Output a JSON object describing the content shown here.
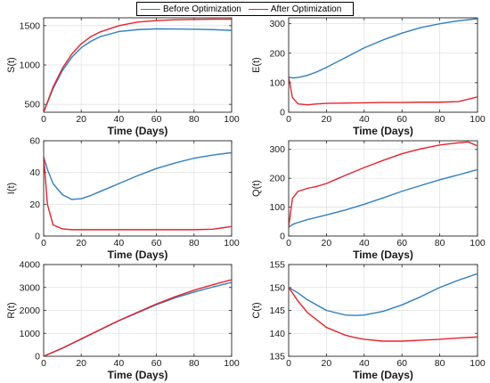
{
  "legend": {
    "before": "Before Optimization",
    "after": "After Optimization"
  },
  "colors": {
    "before": "#2f7fc1",
    "after": "#e8222b"
  },
  "chart_data": [
    {
      "type": "line",
      "ylabel": "S(t)",
      "xlabel": "Time (Days)",
      "xlim": [
        0,
        100
      ],
      "ylim": [
        400,
        1600
      ],
      "xticks": [
        0,
        20,
        40,
        60,
        80,
        100
      ],
      "yticks": [
        500,
        1000,
        1500
      ],
      "grid": true,
      "x": [
        0,
        5,
        10,
        15,
        20,
        25,
        30,
        40,
        50,
        60,
        70,
        80,
        90,
        100
      ],
      "series": [
        {
          "name": "Before Optimization",
          "values": [
            400,
            700,
            930,
            1100,
            1220,
            1300,
            1360,
            1425,
            1450,
            1460,
            1458,
            1455,
            1450,
            1440
          ]
        },
        {
          "name": "After Optimization",
          "values": [
            400,
            720,
            960,
            1140,
            1270,
            1360,
            1420,
            1500,
            1545,
            1565,
            1575,
            1580,
            1582,
            1583
          ]
        }
      ]
    },
    {
      "type": "line",
      "ylabel": "E(t)",
      "xlabel": "Time (Days)",
      "xlim": [
        0,
        100
      ],
      "ylim": [
        0,
        320
      ],
      "xticks": [
        0,
        20,
        40,
        60,
        80,
        100
      ],
      "yticks": [
        0,
        100,
        200,
        300
      ],
      "grid": true,
      "x": [
        0,
        2,
        5,
        10,
        15,
        20,
        30,
        40,
        50,
        60,
        70,
        80,
        90,
        100
      ],
      "series": [
        {
          "name": "Before Optimization",
          "values": [
            120,
            116,
            118,
            125,
            137,
            152,
            185,
            218,
            245,
            268,
            287,
            300,
            310,
            317
          ]
        },
        {
          "name": "After Optimization",
          "values": [
            120,
            50,
            28,
            25,
            28,
            30,
            31,
            32,
            33,
            33,
            34,
            34,
            36,
            52
          ]
        }
      ]
    },
    {
      "type": "line",
      "ylabel": "I(t)",
      "xlabel": "Time (Days)",
      "xlim": [
        0,
        100
      ],
      "ylim": [
        0,
        60
      ],
      "xticks": [
        0,
        20,
        40,
        60,
        80,
        100
      ],
      "yticks": [
        0,
        20,
        40,
        60
      ],
      "grid": true,
      "x": [
        0,
        2,
        5,
        10,
        15,
        20,
        25,
        30,
        40,
        50,
        60,
        70,
        80,
        90,
        100
      ],
      "series": [
        {
          "name": "Before Optimization",
          "values": [
            50,
            42,
            33,
            26,
            23,
            23.5,
            25.5,
            28,
            33,
            38,
            42.5,
            46,
            49,
            51,
            52.5
          ]
        },
        {
          "name": "After Optimization",
          "values": [
            50,
            20,
            7,
            4.5,
            4,
            4,
            4,
            4,
            4,
            4,
            4,
            4,
            4,
            4.3,
            6
          ]
        }
      ]
    },
    {
      "type": "line",
      "ylabel": "Q(t)",
      "xlabel": "Time (Days)",
      "xlim": [
        0,
        100
      ],
      "ylim": [
        0,
        330
      ],
      "xticks": [
        0,
        20,
        40,
        60,
        80,
        100
      ],
      "yticks": [
        0,
        100,
        200,
        300
      ],
      "grid": true,
      "x": [
        0,
        2,
        5,
        10,
        15,
        20,
        30,
        40,
        50,
        60,
        70,
        80,
        90,
        95,
        100
      ],
      "series": [
        {
          "name": "Before Optimization",
          "values": [
            30,
            40,
            47,
            57,
            65,
            73,
            90,
            110,
            132,
            155,
            175,
            195,
            212,
            221,
            230
          ]
        },
        {
          "name": "After Optimization",
          "values": [
            30,
            130,
            155,
            165,
            172,
            182,
            210,
            237,
            262,
            285,
            302,
            315,
            323,
            326,
            312
          ]
        }
      ]
    },
    {
      "type": "line",
      "ylabel": "R(t)",
      "xlabel": "Time (Days)",
      "xlim": [
        0,
        100
      ],
      "ylim": [
        0,
        4000
      ],
      "xticks": [
        0,
        20,
        40,
        60,
        80,
        100
      ],
      "yticks": [
        0,
        1000,
        2000,
        3000,
        4000
      ],
      "grid": true,
      "x": [
        0,
        10,
        20,
        30,
        40,
        50,
        60,
        70,
        80,
        90,
        100
      ],
      "series": [
        {
          "name": "Before Optimization",
          "values": [
            0,
            350,
            750,
            1150,
            1550,
            1900,
            2250,
            2550,
            2800,
            3020,
            3220
          ]
        },
        {
          "name": "After Optimization",
          "values": [
            0,
            360,
            760,
            1160,
            1560,
            1920,
            2280,
            2600,
            2880,
            3120,
            3340
          ]
        }
      ]
    },
    {
      "type": "line",
      "ylabel": "C(t)",
      "xlabel": "Time (Days)",
      "xlim": [
        0,
        100
      ],
      "ylim": [
        135,
        155
      ],
      "xticks": [
        0,
        20,
        40,
        60,
        80,
        100
      ],
      "yticks": [
        135,
        140,
        145,
        150,
        155
      ],
      "grid": true,
      "x": [
        0,
        5,
        10,
        20,
        30,
        35,
        40,
        50,
        60,
        70,
        80,
        90,
        100
      ],
      "series": [
        {
          "name": "Before Optimization",
          "values": [
            150,
            148.8,
            147.3,
            145,
            144,
            143.9,
            144,
            144.8,
            146.2,
            148,
            150,
            151.6,
            153
          ]
        },
        {
          "name": "After Optimization",
          "values": [
            150,
            147,
            144.5,
            141.3,
            139.6,
            139.1,
            138.7,
            138.3,
            138.3,
            138.5,
            138.7,
            139,
            139.2
          ]
        }
      ]
    }
  ]
}
